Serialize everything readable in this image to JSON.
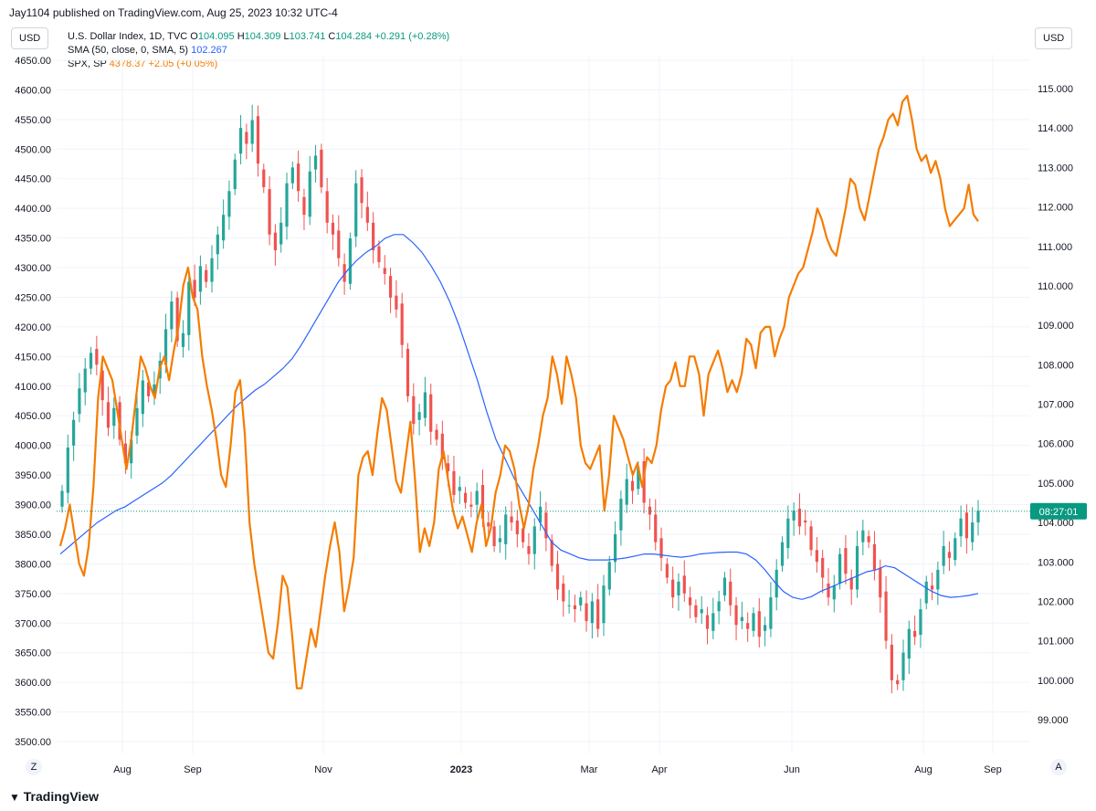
{
  "header": {
    "attribution": "Jay1104 published on TradingView.com, Aug 25, 2023 10:32 UTC-4"
  },
  "currency": {
    "left": "USD",
    "right": "USD"
  },
  "legend": {
    "main": {
      "name": "U.S. Dollar Index, 1D, TVC",
      "open_label": "O",
      "open": "104.095",
      "high_label": "H",
      "high": "104.309",
      "low_label": "L",
      "low": "103.741",
      "close_label": "C",
      "close": "104.284",
      "change": "+0.291 (+0.28%)"
    },
    "sma": {
      "name": "SMA (50, close, 0, SMA, 5)",
      "value": "102.267"
    },
    "spx": {
      "name": "SPX, SP",
      "value": "4378.37",
      "change": "+2.05 (+0.05%)"
    }
  },
  "price_tag": {
    "value": "08:27:01",
    "color": "#089981"
  },
  "corners": {
    "left": "Z",
    "right": "A"
  },
  "footer": {
    "brand": "TradingView"
  },
  "chart_data": {
    "type": "line",
    "colors": {
      "up": "#26a69a",
      "down": "#ef5350",
      "sma": "#2962ff",
      "spx": "#f57c00",
      "grid": "#f0f3fa",
      "last_price_line": "#089981"
    },
    "left_axis": {
      "ticks": [
        "4650.00",
        "4600.00",
        "4550.00",
        "4500.00",
        "4450.00",
        "4400.00",
        "4350.00",
        "4300.00",
        "4250.00",
        "4200.00",
        "4150.00",
        "4100.00",
        "4050.00",
        "4000.00",
        "3950.00",
        "3900.00",
        "3850.00",
        "3800.00",
        "3750.00",
        "3700.00",
        "3650.00",
        "3600.00",
        "3550.00",
        "3500.00"
      ],
      "range": [
        3500,
        4650
      ]
    },
    "right_axis": {
      "ticks": [
        "115.000",
        "114.000",
        "113.000",
        "112.000",
        "111.000",
        "110.000",
        "109.000",
        "108.000",
        "107.000",
        "106.000",
        "105.000",
        "104.000",
        "103.000",
        "102.000",
        "101.000",
        "100.000",
        "99.000"
      ],
      "range": [
        98.7,
        115
      ]
    },
    "x_axis": {
      "labels": [
        "Aug",
        "Sep",
        "Nov",
        "2023",
        "Mar",
        "Apr",
        "Jun",
        "Aug",
        "Sep"
      ],
      "bold": [
        "2023"
      ]
    },
    "last_price": 104.284,
    "spx_series": {
      "name": "SPX, SP",
      "values": [
        3830,
        3860,
        3900,
        3850,
        3800,
        3780,
        3830,
        3930,
        4080,
        4150,
        4130,
        4110,
        4060,
        4010,
        3960,
        4010,
        4080,
        4150,
        4130,
        4100,
        4080,
        4130,
        4150,
        4110,
        4160,
        4200,
        4270,
        4300,
        4250,
        4230,
        4150,
        4100,
        4060,
        4010,
        3950,
        3930,
        4000,
        4090,
        4110,
        4020,
        3870,
        3800,
        3750,
        3700,
        3650,
        3640,
        3700,
        3780,
        3760,
        3680,
        3590,
        3590,
        3640,
        3690,
        3660,
        3720,
        3780,
        3830,
        3870,
        3820,
        3720,
        3760,
        3810,
        3950,
        3980,
        3990,
        3950,
        4020,
        4080,
        4060,
        4000,
        3940,
        3920,
        3980,
        4040,
        3940,
        3820,
        3860,
        3830,
        3870,
        3960,
        3990,
        3940,
        3890,
        3860,
        3880,
        3850,
        3820,
        3870,
        3900,
        3830,
        3860,
        3920,
        3950,
        4000,
        3990,
        3960,
        3900,
        3860,
        3900,
        3960,
        4000,
        4050,
        4080,
        4150,
        4120,
        4070,
        4150,
        4120,
        4080,
        4000,
        3970,
        3960,
        3980,
        4000,
        3890,
        3950,
        4050,
        4030,
        4010,
        3980,
        3950,
        3970,
        3930,
        3980,
        3970,
        4000,
        4060,
        4100,
        4110,
        4140,
        4100,
        4100,
        4150,
        4150,
        4120,
        4050,
        4120,
        4140,
        4160,
        4130,
        4090,
        4110,
        4090,
        4120,
        4180,
        4170,
        4130,
        4190,
        4200,
        4200,
        4150,
        4180,
        4200,
        4250,
        4270,
        4290,
        4300,
        4330,
        4360,
        4400,
        4380,
        4350,
        4330,
        4320,
        4360,
        4400,
        4450,
        4440,
        4400,
        4380,
        4420,
        4460,
        4500,
        4520,
        4550,
        4560,
        4540,
        4580,
        4590,
        4550,
        4500,
        4480,
        4490,
        4460,
        4480,
        4450,
        4400,
        4370,
        4380,
        4390,
        4400,
        4440,
        4390,
        4378
      ],
      "x_range": [
        2022.5,
        2023.65
      ]
    },
    "sma_series": {
      "name": "SMA (50, close, 0, SMA, 5)",
      "values": [
        103.2,
        103.4,
        103.6,
        103.8,
        104.0,
        104.15,
        104.3,
        104.4,
        104.55,
        104.7,
        104.85,
        105.0,
        105.2,
        105.45,
        105.7,
        105.95,
        106.2,
        106.45,
        106.7,
        106.95,
        107.15,
        107.35,
        107.5,
        107.7,
        107.9,
        108.15,
        108.5,
        108.9,
        109.3,
        109.7,
        110.1,
        110.4,
        110.65,
        110.85,
        111.0,
        111.2,
        111.3,
        111.3,
        111.1,
        110.85,
        110.5,
        110.1,
        109.6,
        109.0,
        108.3,
        107.6,
        106.8,
        106.1,
        105.6,
        105.1,
        104.7,
        104.3,
        103.9,
        103.5,
        103.3,
        103.2,
        103.1,
        103.05,
        103.05,
        103.05,
        103.07,
        103.1,
        103.15,
        103.2,
        103.2,
        103.17,
        103.14,
        103.12,
        103.15,
        103.2,
        103.22,
        103.24,
        103.25,
        103.25,
        103.2,
        103.05,
        102.8,
        102.5,
        102.25,
        102.1,
        102.05,
        102.12,
        102.25,
        102.35,
        102.45,
        102.55,
        102.65,
        102.75,
        102.8,
        102.9,
        102.85,
        102.7,
        102.55,
        102.4,
        102.25,
        102.15,
        102.1,
        102.12,
        102.15,
        102.2
      ]
    },
    "dxy_candles": {
      "count": 185,
      "range": [
        99.6,
        114.8
      ],
      "closes": [
        104.8,
        105.9,
        106.6,
        107.4,
        107.9,
        108.3,
        108.0,
        107.1,
        106.4,
        106.9,
        106.1,
        105.5,
        106.1,
        106.9,
        107.6,
        107.2,
        107.5,
        108.1,
        108.9,
        109.6,
        108.6,
        108.8,
        110.1,
        109.7,
        110.5,
        110.1,
        110.7,
        111.3,
        111.8,
        112.4,
        113.2,
        114.0,
        113.6,
        114.2,
        113.1,
        112.5,
        111.3,
        110.9,
        111.6,
        112.6,
        113.0,
        112.4,
        111.8,
        112.9,
        113.3,
        112.5,
        111.6,
        111.3,
        110.7,
        110.1,
        111.2,
        112.6,
        112.1,
        111.6,
        110.9,
        110.6,
        110.3,
        109.7,
        109.4,
        108.5,
        107.2,
        106.5,
        106.8,
        107.3,
        106.3,
        106.1,
        105.6,
        105.3,
        104.7,
        104.9,
        104.5,
        104.4,
        104.8,
        104.1,
        103.9,
        103.4,
        103.6,
        104.2,
        104.0,
        103.7,
        103.5,
        103.2,
        103.9,
        104.4,
        103.6,
        102.9,
        102.3,
        102.0,
        101.9,
        101.8,
        102.1,
        101.5,
        102.0,
        101.3,
        102.4,
        103.0,
        103.7,
        104.6,
        105.1,
        104.8,
        105.4,
        104.5,
        104.2,
        103.5,
        103.1,
        102.6,
        102.1,
        102.5,
        102.2,
        101.9,
        101.6,
        101.8,
        101.3,
        101.7,
        102.0,
        102.6,
        101.9,
        101.4,
        101.6,
        101.3,
        101.7,
        101.1,
        101.4,
        102.1,
        102.8,
        103.5,
        104.1,
        104.3,
        103.9,
        104.0,
        103.3,
        103.0,
        102.6,
        102.1,
        102.4,
        103.2,
        102.7,
        102.3,
        103.4,
        103.8,
        103.5,
        102.8,
        102.1,
        101.0,
        100.0,
        99.9,
        100.7,
        101.3,
        101.1,
        101.8,
        102.5,
        102.3,
        102.8,
        103.4,
        103.1,
        103.6,
        104.1,
        103.6,
        104.0,
        104.3
      ]
    }
  }
}
